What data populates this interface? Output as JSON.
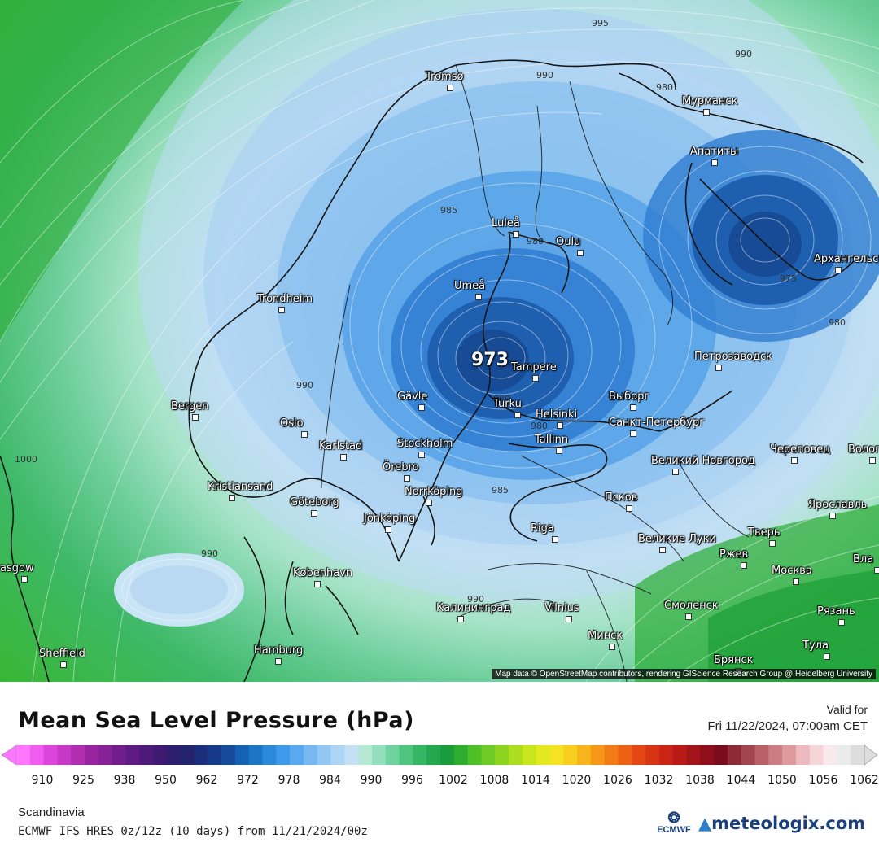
{
  "map": {
    "attribution": "Map data © OpenStreetMap contributors, rendering GIScience Research Group @ Heidelberg University",
    "low_center": "973",
    "isobar_labels": [
      {
        "id": "i1",
        "text": "995"
      },
      {
        "id": "i2",
        "text": "990"
      },
      {
        "id": "i3",
        "text": "990"
      },
      {
        "id": "i4",
        "text": "980"
      },
      {
        "id": "i5",
        "text": "985"
      },
      {
        "id": "i6",
        "text": "980"
      },
      {
        "id": "i7",
        "text": "990"
      },
      {
        "id": "i8",
        "text": "1000"
      },
      {
        "id": "i9",
        "text": "990"
      },
      {
        "id": "i10",
        "text": "980"
      },
      {
        "id": "i11",
        "text": "985"
      },
      {
        "id": "i12",
        "text": "990"
      },
      {
        "id": "i13",
        "text": "975"
      },
      {
        "id": "i14",
        "text": "980"
      },
      {
        "id": "i15",
        "text": "980"
      }
    ],
    "cities": [
      "Tromsø",
      "Мурманск",
      "Апатиты",
      "Luleå",
      "Oulu",
      "Umeå",
      "Архангельск",
      "Trondheim",
      "Tampere",
      "Петрозаводск",
      "Bergen",
      "Gävle",
      "Turku",
      "Helsinki",
      "Выборг",
      "Санкт-Петербург",
      "Oslo",
      "Karlstad",
      "Stockholm",
      "Tallinn",
      "Örebro",
      "Череповец",
      "Волог",
      "Kristiansand",
      "Великий Новгород",
      "Norrköping",
      "Göteborg",
      "Jönköping",
      "Псков",
      "Ярославль",
      "Riga",
      "Тверь",
      "Великие Луки",
      "Ржев",
      "Москва",
      "Вла",
      "København",
      "asgow",
      "Калининград",
      "Vilnius",
      "Смоленск",
      "Рязань",
      "Минск",
      "Тула",
      "Sheffield",
      "Hamburg",
      "Брянск"
    ]
  },
  "legend": {
    "title": "Mean Sea Level Pressure (hPa)",
    "valid_label": "Valid for",
    "valid_date": "Fri 11/22/2024, 07:00am CET",
    "ticks": [
      "910",
      "925",
      "938",
      "950",
      "962",
      "972",
      "978",
      "984",
      "990",
      "996",
      "1002",
      "1008",
      "1014",
      "1020",
      "1026",
      "1032",
      "1038",
      "1044",
      "1050",
      "1056",
      "1062"
    ],
    "colors": [
      "#ff77ff",
      "#f05cf0",
      "#dd44dd",
      "#c738c7",
      "#b02db0",
      "#9a24a0",
      "#862196",
      "#711d8c",
      "#5e1b83",
      "#4d1a7a",
      "#3f1a73",
      "#2f1d6d",
      "#24246d",
      "#1b2e7a",
      "#17398a",
      "#164b9c",
      "#1661b3",
      "#1b76c6",
      "#2a8adb",
      "#3f9aea",
      "#5aa9ee",
      "#76b8f0",
      "#93c7f2",
      "#aed5f4",
      "#c4e0f4",
      "#b5e8d5",
      "#93dfbd",
      "#6ed39f",
      "#4fc47f",
      "#35b665",
      "#22a84e",
      "#1a9c3a",
      "#2ead2e",
      "#4fbf28",
      "#6ecb25",
      "#8dd421",
      "#acdd1f",
      "#c8e51e",
      "#e2ea1f",
      "#f3e323",
      "#f7cd1e",
      "#f7b41b",
      "#f59818",
      "#f17c16",
      "#ec6114",
      "#e34814",
      "#d83414",
      "#c92414",
      "#b81a17",
      "#a3131a",
      "#8e0e1c",
      "#7b0c1d",
      "#8e2a35",
      "#a3454e",
      "#b86167",
      "#cc7d83",
      "#df9aa0",
      "#eebac0",
      "#f6d5d9",
      "#f8e9ec",
      "#ebebeb",
      "#dddddd"
    ],
    "region": "Scandinavia",
    "model_run": "ECMWF IFS HRES 0z/12z (10 days) from 11/21/2024/00z",
    "ecmwf_logo": "ECMWF",
    "brand": "meteologix.com"
  }
}
